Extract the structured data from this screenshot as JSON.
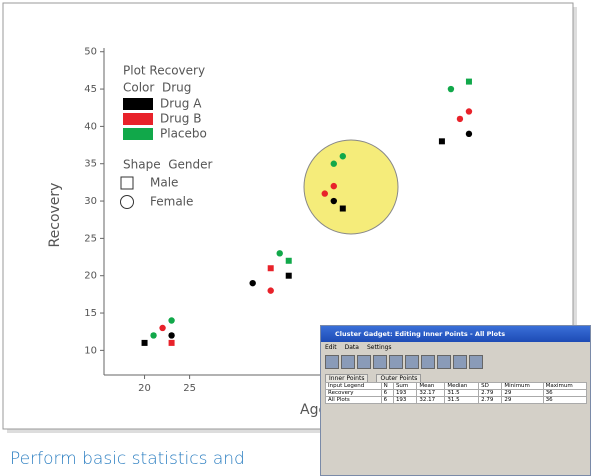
{
  "chart_data": {
    "type": "scatter",
    "x_label": "Age",
    "y_label": "Recovery",
    "xlim": [
      15.5,
      60
    ],
    "ylim": [
      6.7,
      50.5
    ],
    "xticks": [
      20,
      25
    ],
    "yticks": [
      10,
      15,
      20,
      25,
      30,
      35,
      40,
      45,
      50
    ],
    "legend": {
      "title": "Plot Recovery",
      "color_title": "Color  Drug",
      "shape_title": "Shape  Gender",
      "corner": "top-left"
    },
    "shapes": [
      {
        "name": "Male",
        "marker": "square"
      },
      {
        "name": "Female",
        "marker": "circle"
      }
    ],
    "series": [
      {
        "name": "Drug A",
        "color": "#000000",
        "x": [
          20,
          23,
          32,
          36,
          41,
          42,
          53,
          56
        ],
        "values": [
          11,
          12,
          19,
          20,
          30,
          29,
          38,
          39
        ],
        "gender": [
          "Male",
          "Female",
          "Female",
          "Male",
          "Female",
          "Male",
          "Male",
          "Female"
        ]
      },
      {
        "name": "Drug B",
        "color": "#e8222a",
        "x": [
          22,
          23,
          34,
          34,
          40,
          41,
          55,
          56
        ],
        "values": [
          13,
          11,
          21,
          18,
          31,
          32,
          41,
          42
        ],
        "gender": [
          "Female",
          "Male",
          "Male",
          "Female",
          "Female",
          "Female",
          "Female",
          "Female"
        ]
      },
      {
        "name": "Placebo",
        "color": "#11a84a",
        "x": [
          21,
          23,
          35,
          36,
          41,
          42,
          54,
          56
        ],
        "values": [
          12,
          14,
          23,
          22,
          35,
          36,
          45,
          46
        ],
        "gender": [
          "Female",
          "Female",
          "Female",
          "Male",
          "Female",
          "Female",
          "Female",
          "Male"
        ]
      }
    ]
  },
  "window": {
    "title": "Cluster Gadget: Editing Inner Points - All Plots",
    "menu": [
      "Edit",
      "Data",
      "Settings"
    ],
    "tabs": [
      "Inner Points",
      "Outer Points"
    ],
    "table": {
      "header": [
        "Input Legend",
        "N",
        "Sum",
        "Mean",
        "Median",
        "SD",
        "Minimum",
        "Maximum"
      ],
      "rows": [
        [
          "Recovery",
          6,
          193,
          32.17,
          31.5,
          2.79,
          29,
          36
        ],
        [
          "All Plots",
          6,
          193,
          32.17,
          31.5,
          2.79,
          29,
          36
        ]
      ]
    }
  },
  "caption": "Perform basic statistics and"
}
